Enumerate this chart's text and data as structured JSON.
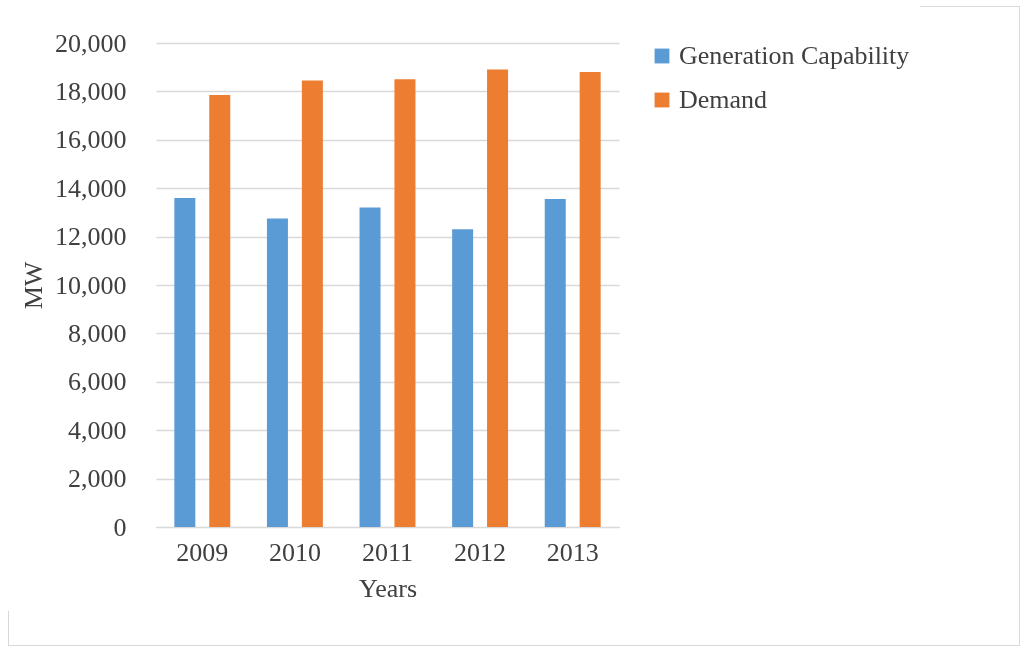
{
  "chart_data": {
    "type": "bar",
    "xlabel": "Years",
    "ylabel": "MW",
    "categories": [
      "2009",
      "2010",
      "2011",
      "2012",
      "2013"
    ],
    "series": [
      {
        "name": "Generation Capability",
        "color": "#5b9bd5",
        "values": [
          13600,
          12750,
          13200,
          12300,
          13550
        ]
      },
      {
        "name": "Demand",
        "color": "#ed7d31",
        "values": [
          17850,
          18450,
          18500,
          18900,
          18800
        ]
      }
    ],
    "ylim": [
      0,
      20000
    ],
    "yticks": [
      {
        "value": 0,
        "label": "0"
      },
      {
        "value": 2000,
        "label": "2,000"
      },
      {
        "value": 4000,
        "label": "4,000"
      },
      {
        "value": 6000,
        "label": "6,000"
      },
      {
        "value": 8000,
        "label": "8,000"
      },
      {
        "value": 10000,
        "label": "10,000"
      },
      {
        "value": 12000,
        "label": "12,000"
      },
      {
        "value": 14000,
        "label": "14,000"
      },
      {
        "value": 16000,
        "label": "16,000"
      },
      {
        "value": 18000,
        "label": "18,000"
      },
      {
        "value": 20000,
        "label": "20,000"
      }
    ],
    "grid": "y",
    "legend": "right"
  }
}
